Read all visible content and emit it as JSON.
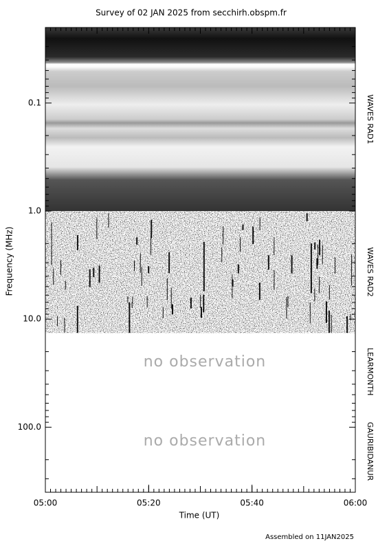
{
  "chart_data": {
    "type": "spectrogram",
    "title": "Survey of 02 JAN 2025 from secchirh.obspm.fr",
    "x_label": "Time (UT)",
    "y_label": "Frequency (MHz)",
    "xlim": [
      0,
      60
    ],
    "xticks": [
      {
        "value": 0,
        "label": "05:00"
      },
      {
        "value": 20,
        "label": "05:20"
      },
      {
        "value": 40,
        "label": "05:40"
      },
      {
        "value": 60,
        "label": "06:00"
      }
    ],
    "ylim": [
      0.02,
      400
    ],
    "yticks": [
      0.1,
      {
        "value": 1,
        "label": "1.0"
      },
      {
        "value": 10,
        "label": "10.0"
      },
      {
        "value": 100,
        "label": "100.0"
      }
    ],
    "log_y": true,
    "y_inverted": true,
    "minor_ticks": true,
    "bands": [
      {
        "name": "WAVES RAD1",
        "range": [
          0.02,
          1.0
        ],
        "observed": true
      },
      {
        "name": "WAVES RAD2",
        "range": [
          1.0,
          13.4
        ],
        "observed": true
      },
      {
        "name": "LEARMONTH",
        "range": [
          13.4,
          70
        ],
        "observed": false,
        "note": "no observation"
      },
      {
        "name": "GAURIBIDANUR",
        "range": [
          70,
          400
        ],
        "observed": false,
        "note": "no observation"
      }
    ],
    "footer": "Assembled on 11JAN2025"
  }
}
